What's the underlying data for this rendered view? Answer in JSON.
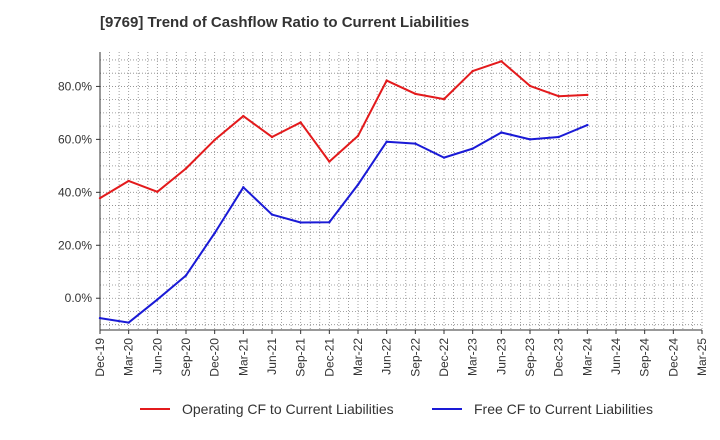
{
  "chart_data": {
    "type": "line",
    "title": "[9769]  Trend of Cashflow Ratio to Current Liabilities",
    "xlabel": "",
    "ylabel": "",
    "x_ticks": [
      "Dec-19",
      "Mar-20",
      "Jun-20",
      "Sep-20",
      "Dec-20",
      "Mar-21",
      "Jun-21",
      "Sep-21",
      "Dec-21",
      "Mar-22",
      "Jun-22",
      "Sep-22",
      "Dec-22",
      "Mar-23",
      "Jun-23",
      "Sep-23",
      "Dec-23",
      "Mar-24",
      "Jun-24",
      "Sep-24",
      "Dec-24",
      "Mar-25"
    ],
    "categories": [
      "Dec-19",
      "Mar-20",
      "Jun-20",
      "Sep-20",
      "Dec-20",
      "Mar-21",
      "Jun-21",
      "Sep-21",
      "Dec-21",
      "Mar-22",
      "Jun-22",
      "Sep-22",
      "Dec-22",
      "Mar-23",
      "Jun-23",
      "Sep-23",
      "Dec-23",
      "Mar-24"
    ],
    "y_ticks": [
      0,
      20,
      40,
      60,
      80
    ],
    "y_tick_labels": [
      "0.0%",
      "20.0%",
      "40.0%",
      "60.0%",
      "80.0%"
    ],
    "ylim": [
      -12,
      93
    ],
    "grid": true,
    "legend_position": "bottom",
    "series": [
      {
        "name": "Operating CF to Current Liabilities",
        "color": "#e31a1c",
        "values": [
          37.8,
          44.3,
          40.2,
          49.0,
          59.8,
          68.8,
          60.9,
          66.4,
          51.6,
          61.3,
          82.2,
          77.2,
          75.2,
          85.8,
          89.5,
          80.2,
          76.3,
          76.8
        ]
      },
      {
        "name": "Free CF to Current Liabilities",
        "color": "#1a1ad6",
        "values": [
          -7.5,
          -9.2,
          -0.5,
          8.6,
          24.6,
          41.9,
          31.6,
          28.6,
          28.7,
          42.9,
          59.1,
          58.4,
          53.1,
          56.5,
          62.6,
          60.0,
          60.9,
          65.4
        ]
      }
    ]
  }
}
